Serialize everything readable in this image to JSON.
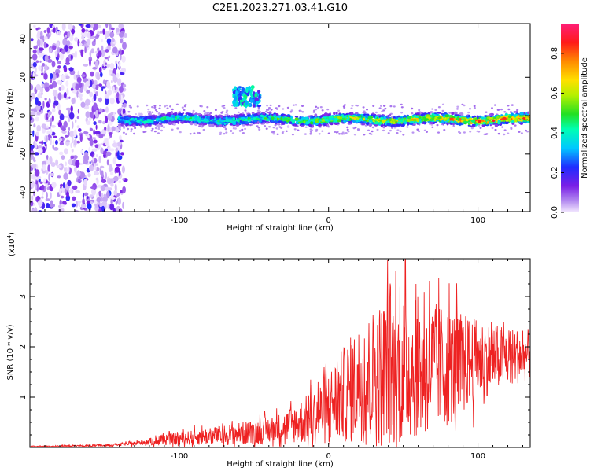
{
  "figure_title": "C2E1.2023.271.03.41.G10",
  "chart_data": [
    {
      "type": "heatmap",
      "xlabel": "Height of straight line (km)",
      "ylabel": "Frequency (Hz)",
      "xlim": [
        -200,
        135
      ],
      "ylim": [
        -50,
        48
      ],
      "x_ticks": [
        -100,
        0,
        100
      ],
      "y_ticks": [
        -40,
        -20,
        0,
        20,
        40
      ],
      "colorbar": {
        "label": "Normalized spectral amplitude",
        "range": [
          0,
          0.95
        ],
        "ticks": [
          0.0,
          0.2,
          0.4,
          0.6,
          0.8
        ],
        "colormap": "rainbow: purple-blue-cyan-green-yellow-orange-red-pink"
      },
      "features": {
        "noise_region_x": [
          -200,
          -140
        ],
        "noise_amplitude_approx": 0.05,
        "signal_band_center_hz": [
          -4,
          -3,
          -2,
          -1,
          0
        ],
        "signal_band_halfwidth_hz": 4,
        "signal_amplitude_at_x": {
          "x": [
            -140,
            -100,
            -50,
            0,
            50,
            100,
            135
          ],
          "amp": [
            0.45,
            0.45,
            0.5,
            0.6,
            0.7,
            0.8,
            0.85
          ]
        },
        "bump_near_x": -55,
        "bump_freq_hz": [
          5,
          15
        ]
      }
    },
    {
      "type": "line",
      "xlabel": "Height of straight line (km)",
      "ylabel": "SNR (10 * v/v)",
      "y_scale_note": "(x10",
      "y_scale_exp": "4",
      "xlim": [
        -200,
        135
      ],
      "ylim": [
        0,
        3.75
      ],
      "x_ticks": [
        -100,
        0,
        100
      ],
      "y_ticks": [
        1,
        2,
        3
      ],
      "color": "#ee2222",
      "envelope": {
        "x": [
          -200,
          -150,
          -130,
          -110,
          -90,
          -70,
          -50,
          -30,
          -10,
          0,
          20,
          40,
          60,
          80,
          100,
          120,
          135
        ],
        "mean": [
          0.02,
          0.04,
          0.08,
          0.15,
          0.2,
          0.25,
          0.3,
          0.4,
          0.6,
          0.8,
          1.3,
          1.5,
          1.6,
          1.6,
          1.75,
          1.8,
          1.85
        ],
        "spread": [
          0.01,
          0.02,
          0.04,
          0.1,
          0.15,
          0.2,
          0.25,
          0.3,
          0.55,
          0.75,
          1.15,
          1.6,
          1.4,
          1.2,
          0.8,
          0.6,
          0.5
        ]
      }
    }
  ]
}
